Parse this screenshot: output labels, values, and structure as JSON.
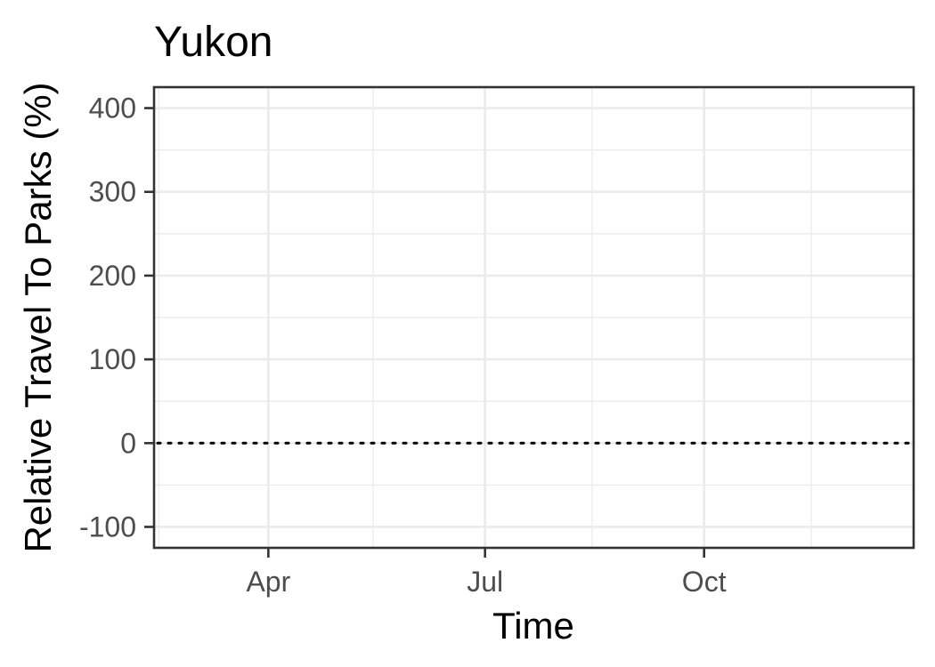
{
  "chart_data": {
    "type": "line",
    "title": "Yukon",
    "xlabel": "Time",
    "ylabel": "Relative Travel To Parks (%)",
    "x_axis_type": "date",
    "xlim": [
      "2020-02-13",
      "2020-12-28"
    ],
    "x_major_ticks": [
      {
        "date": "2020-04-01",
        "label": "Apr"
      },
      {
        "date": "2020-07-01",
        "label": "Jul"
      },
      {
        "date": "2020-10-01",
        "label": "Oct"
      }
    ],
    "x_minor_ticks": [
      "2020-02-15",
      "2020-05-15",
      "2020-08-15",
      "2020-11-15"
    ],
    "ylim": [
      -125,
      425
    ],
    "y_major_ticks": [
      -100,
      0,
      100,
      200,
      300,
      400
    ],
    "y_minor_ticks": [
      -50,
      50,
      150,
      250,
      350
    ],
    "reference_line": {
      "y": 0,
      "style": "dotted",
      "color": "#000000"
    },
    "series": [],
    "grid": true,
    "legend": "none"
  }
}
